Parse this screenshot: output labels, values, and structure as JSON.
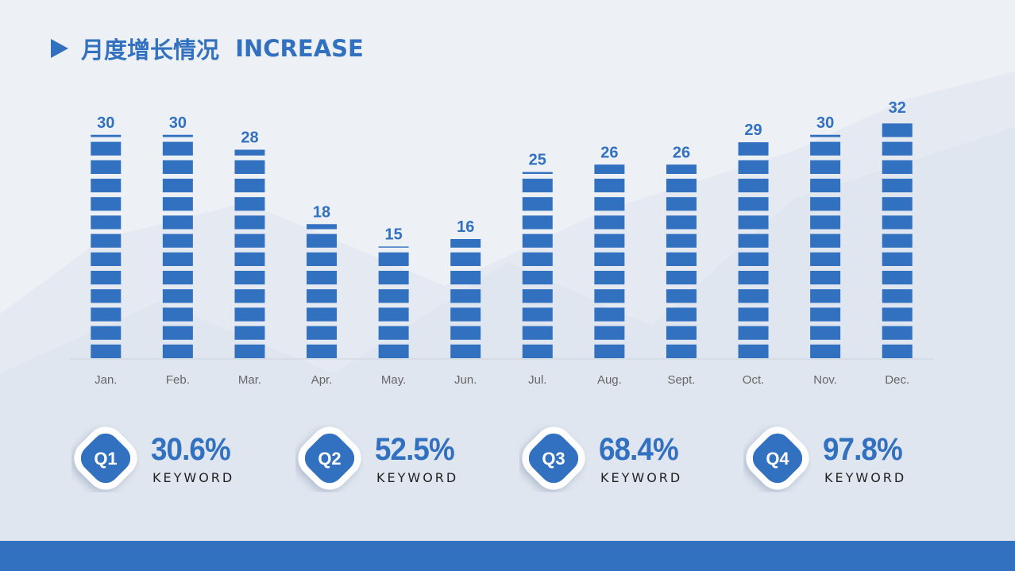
{
  "header": {
    "title_cn": "月度增长情况",
    "title_en": "INCREASE"
  },
  "colors": {
    "accent": "#3270c0",
    "background": "#edf1f6",
    "mountain_light": "#e4eaf2",
    "mountain_dark": "#dce3ed",
    "axis_label": "#666666"
  },
  "chart_data": {
    "type": "bar",
    "categories": [
      "Jan.",
      "Feb.",
      "Mar.",
      "Apr.",
      "May.",
      "Jun.",
      "Jul.",
      "Aug.",
      "Sept.",
      "Oct.",
      "Nov.",
      "Dec."
    ],
    "values": [
      30,
      30,
      28,
      18,
      15,
      16,
      25,
      26,
      26,
      29,
      30,
      32
    ],
    "ylim": [
      0,
      32
    ],
    "data_labels": true,
    "legend": "none",
    "grid": false
  },
  "quarters": [
    {
      "label": "Q1",
      "value": "30.6%",
      "keyword": "KEYWORD"
    },
    {
      "label": "Q2",
      "value": "52.5%",
      "keyword": "KEYWORD"
    },
    {
      "label": "Q3",
      "value": "68.4%",
      "keyword": "KEYWORD"
    },
    {
      "label": "Q4",
      "value": "97.8%",
      "keyword": "KEYWORD"
    }
  ]
}
